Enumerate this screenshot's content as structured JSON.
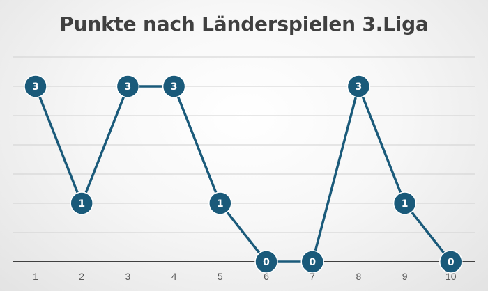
{
  "chart_data": {
    "type": "line",
    "title": "Punkte nach Länderspielen 3.Liga",
    "xlabel": "",
    "ylabel": "",
    "categories": [
      "1",
      "2",
      "3",
      "4",
      "5",
      "6",
      "7",
      "8",
      "9",
      "10"
    ],
    "series": [
      {
        "values": [
          3,
          1,
          3,
          3,
          1,
          0,
          0,
          3,
          1,
          0
        ]
      }
    ],
    "ylim": [
      0,
      3
    ],
    "grid": true,
    "data_labels": true,
    "legend": "none",
    "colors": {
      "line": "#1a5a7a",
      "marker": "#1a5a7a",
      "grid": "#d0d0d0",
      "axis": "#404040"
    }
  }
}
